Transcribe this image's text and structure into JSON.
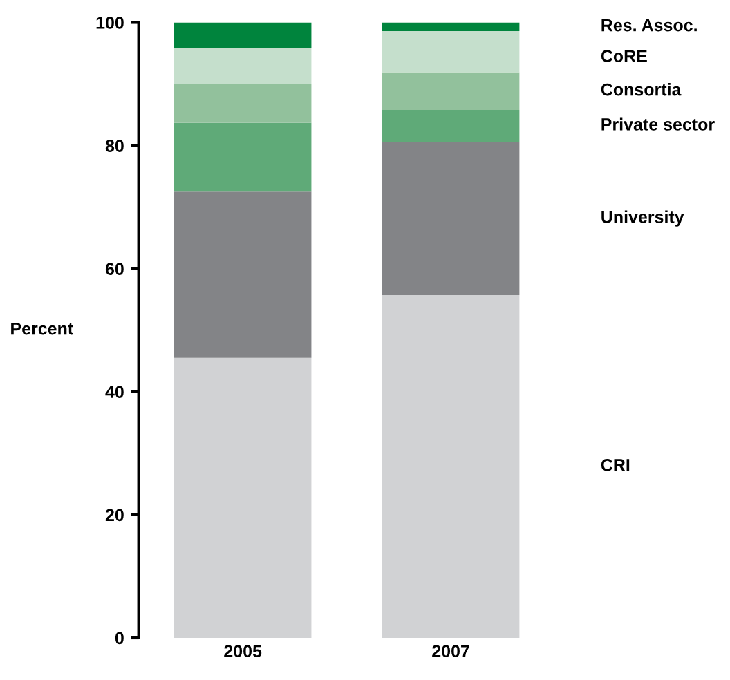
{
  "chart_data": {
    "type": "bar",
    "stacked": true,
    "ylabel": "Percent",
    "categories": [
      "2005",
      "2007"
    ],
    "series": [
      {
        "name": "CRI",
        "color": "#d1d2d4",
        "values": [
          45.5,
          55.7
        ]
      },
      {
        "name": "University",
        "color": "#838487",
        "values": [
          27.0,
          24.9
        ]
      },
      {
        "name": "Private sector",
        "color": "#5faa78",
        "values": [
          11.2,
          5.2
        ]
      },
      {
        "name": "Consortia",
        "color": "#92c19c",
        "values": [
          6.3,
          6.1
        ]
      },
      {
        "name": "CoRE",
        "color": "#c5dfcc",
        "values": [
          5.9,
          6.7
        ]
      },
      {
        "name": "Res. Assoc.",
        "color": "#00843d",
        "values": [
          4.1,
          1.4
        ]
      }
    ],
    "ylim": [
      0,
      100
    ],
    "yticks": [
      0,
      20,
      40,
      60,
      80,
      100
    ],
    "grid": false
  }
}
